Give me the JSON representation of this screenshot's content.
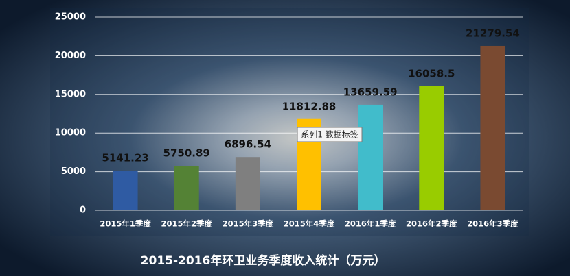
{
  "chart_data": {
    "type": "bar",
    "title": "2015-2016年环卫业务季度收入统计（万元）",
    "categories": [
      "2015年1季度",
      "2015年2季度",
      "2015年3季度",
      "2015年4季度",
      "2016年1季度",
      "2016年2季度",
      "2016年3季度"
    ],
    "values": [
      5141.23,
      5750.89,
      6896.54,
      11812.88,
      13659.59,
      16058.5,
      21279.54
    ],
    "colors": [
      "#2f5ba3",
      "#548235",
      "#7f7f7f",
      "#ffc000",
      "#41bccb",
      "#99cc00",
      "#7a4a31"
    ],
    "ylim": [
      0,
      25000
    ],
    "yticks": [
      0,
      5000,
      10000,
      15000,
      20000,
      25000
    ],
    "grid": true,
    "annotation": "系列1 数据标签"
  }
}
